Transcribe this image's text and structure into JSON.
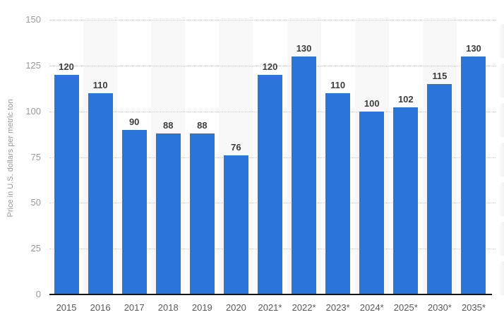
{
  "chart_data": {
    "type": "bar",
    "title": "",
    "ylabel": "Price in U.S. dollars per metric ton",
    "xlabel": "",
    "categories": [
      "2015",
      "2016",
      "2017",
      "2018",
      "2019",
      "2020",
      "2021*",
      "2022*",
      "2023*",
      "2024*",
      "2025*",
      "2030*",
      "2035*"
    ],
    "values": [
      120,
      110,
      90,
      88,
      88,
      76,
      120,
      130,
      110,
      100,
      102,
      115,
      130
    ],
    "ylim": [
      0,
      150
    ],
    "yticks": [
      0,
      25,
      50,
      75,
      100,
      125,
      150
    ],
    "grid": "horizontal-dotted",
    "legend": "none",
    "colors": {
      "bar": "#2b74d9",
      "stripe": "#f8f8f8",
      "gridline": "#c9c9c9",
      "axis_line": "#161616",
      "value_label": "#3d3d3d",
      "y_tick_label": "#9a9a9a",
      "x_tick_label": "#585858",
      "background": "#ffffff"
    }
  }
}
